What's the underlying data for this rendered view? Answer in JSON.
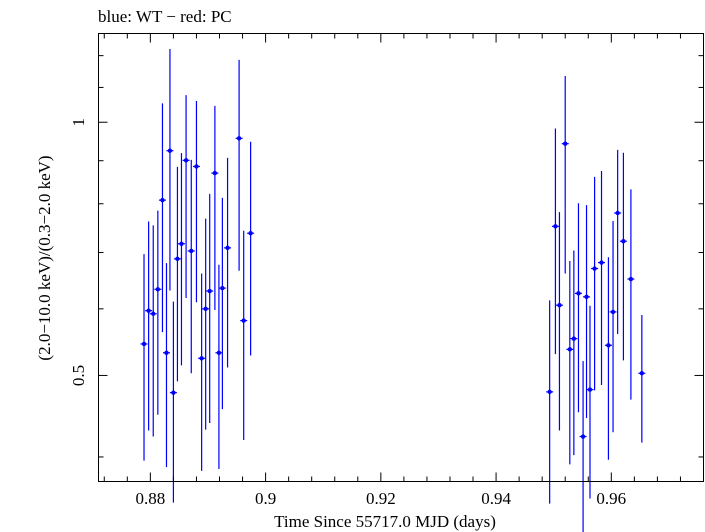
{
  "chart_data": {
    "type": "scatter",
    "title": "blue: WT − red: PC",
    "xlabel": "Time Since 55717.0 MJD (days)",
    "ylabel": "(2.0−10.0 keV)/(0.3−2.0 keV)",
    "xlim": [
      0.871,
      0.976
    ],
    "ylim": [
      0.374,
      1.275
    ],
    "y_scale": "log",
    "grid": false,
    "x_ticks": [
      {
        "value": 0.88,
        "label": "0.88"
      },
      {
        "value": 0.9,
        "label": "0.9"
      },
      {
        "value": 0.92,
        "label": "0.92"
      },
      {
        "value": 0.94,
        "label": "0.94"
      },
      {
        "value": 0.96,
        "label": "0.96"
      }
    ],
    "x_minor_ticks": [
      0.872,
      0.876,
      0.884,
      0.888,
      0.892,
      0.896,
      0.904,
      0.908,
      0.912,
      0.916,
      0.924,
      0.928,
      0.932,
      0.936,
      0.944,
      0.948,
      0.952,
      0.956,
      0.964,
      0.968,
      0.972,
      0.976
    ],
    "y_ticks": [
      {
        "value": 0.5,
        "label": "0.5"
      },
      {
        "value": 1.0,
        "label": "1"
      }
    ],
    "y_minor_ticks": [
      0.4,
      0.6,
      0.7,
      0.8,
      0.9,
      1.1,
      1.2
    ],
    "series": [
      {
        "name": "WT",
        "color": "#0000ff",
        "points": [
          {
            "x": 0.8789,
            "y": 0.545,
            "ylo": 0.396,
            "yhi": 0.697
          },
          {
            "x": 0.8797,
            "y": 0.597,
            "ylo": 0.43,
            "yhi": 0.762
          },
          {
            "x": 0.8805,
            "y": 0.592,
            "ylo": 0.423,
            "yhi": 0.754
          },
          {
            "x": 0.8813,
            "y": 0.633,
            "ylo": 0.449,
            "yhi": 0.785
          },
          {
            "x": 0.8821,
            "y": 0.808,
            "ylo": 0.563,
            "yhi": 1.053
          },
          {
            "x": 0.8828,
            "y": 0.532,
            "ylo": 0.389,
            "yhi": 0.68
          },
          {
            "x": 0.8834,
            "y": 0.925,
            "ylo": 0.631,
            "yhi": 1.222
          },
          {
            "x": 0.884,
            "y": 0.477,
            "ylo": 0.353,
            "yhi": 0.612
          },
          {
            "x": 0.8847,
            "y": 0.688,
            "ylo": 0.492,
            "yhi": 0.885
          },
          {
            "x": 0.8854,
            "y": 0.717,
            "ylo": 0.514,
            "yhi": 0.919
          },
          {
            "x": 0.8862,
            "y": 0.901,
            "ylo": 0.618,
            "yhi": 1.077
          },
          {
            "x": 0.8871,
            "y": 0.703,
            "ylo": 0.503,
            "yhi": 0.902
          },
          {
            "x": 0.888,
            "y": 0.886,
            "ylo": 0.611,
            "yhi": 1.06
          },
          {
            "x": 0.8889,
            "y": 0.524,
            "ylo": 0.385,
            "yhi": 0.661
          },
          {
            "x": 0.8896,
            "y": 0.6,
            "ylo": 0.431,
            "yhi": 0.768
          },
          {
            "x": 0.8903,
            "y": 0.63,
            "ylo": 0.439,
            "yhi": 0.822
          },
          {
            "x": 0.8912,
            "y": 0.87,
            "ylo": 0.598,
            "yhi": 1.046
          },
          {
            "x": 0.8919,
            "y": 0.532,
            "ylo": 0.387,
            "yhi": 0.677
          },
          {
            "x": 0.8925,
            "y": 0.635,
            "ylo": 0.456,
            "yhi": 0.813
          },
          {
            "x": 0.8934,
            "y": 0.709,
            "ylo": 0.511,
            "yhi": 0.907
          },
          {
            "x": 0.8954,
            "y": 0.957,
            "ylo": 0.666,
            "yhi": 1.186
          },
          {
            "x": 0.8962,
            "y": 0.581,
            "ylo": 0.419,
            "yhi": 0.743
          },
          {
            "x": 0.8974,
            "y": 0.738,
            "ylo": 0.528,
            "yhi": 0.948
          }
        ]
      },
      {
        "name": "WT",
        "color": "#0000ff",
        "points": [
          {
            "x": 0.9493,
            "y": 0.478,
            "ylo": 0.352,
            "yhi": 0.614
          },
          {
            "x": 0.9503,
            "y": 0.752,
            "ylo": 0.53,
            "yhi": 0.983
          },
          {
            "x": 0.951,
            "y": 0.606,
            "ylo": 0.43,
            "yhi": 0.782
          },
          {
            "x": 0.952,
            "y": 0.943,
            "ylo": 0.661,
            "yhi": 1.135
          },
          {
            "x": 0.9528,
            "y": 0.537,
            "ylo": 0.392,
            "yhi": 0.684
          },
          {
            "x": 0.9535,
            "y": 0.553,
            "ylo": 0.402,
            "yhi": 0.704
          },
          {
            "x": 0.9543,
            "y": 0.626,
            "ylo": 0.452,
            "yhi": 0.801
          },
          {
            "x": 0.9551,
            "y": 0.423,
            "ylo": 0.323,
            "yhi": 0.52
          },
          {
            "x": 0.9557,
            "y": 0.62,
            "ylo": 0.445,
            "yhi": 0.797
          },
          {
            "x": 0.9563,
            "y": 0.481,
            "ylo": 0.357,
            "yhi": 0.605
          },
          {
            "x": 0.9571,
            "y": 0.67,
            "ylo": 0.48,
            "yhi": 0.861
          },
          {
            "x": 0.9583,
            "y": 0.681,
            "ylo": 0.487,
            "yhi": 0.875
          },
          {
            "x": 0.9595,
            "y": 0.543,
            "ylo": 0.397,
            "yhi": 0.691
          },
          {
            "x": 0.9603,
            "y": 0.595,
            "ylo": 0.428,
            "yhi": 0.763
          },
          {
            "x": 0.9611,
            "y": 0.78,
            "ylo": 0.56,
            "yhi": 0.927
          },
          {
            "x": 0.9621,
            "y": 0.722,
            "ylo": 0.521,
            "yhi": 0.92
          },
          {
            "x": 0.9634,
            "y": 0.651,
            "ylo": 0.468,
            "yhi": 0.832
          },
          {
            "x": 0.9653,
            "y": 0.503,
            "ylo": 0.416,
            "yhi": 0.59
          }
        ]
      }
    ]
  }
}
